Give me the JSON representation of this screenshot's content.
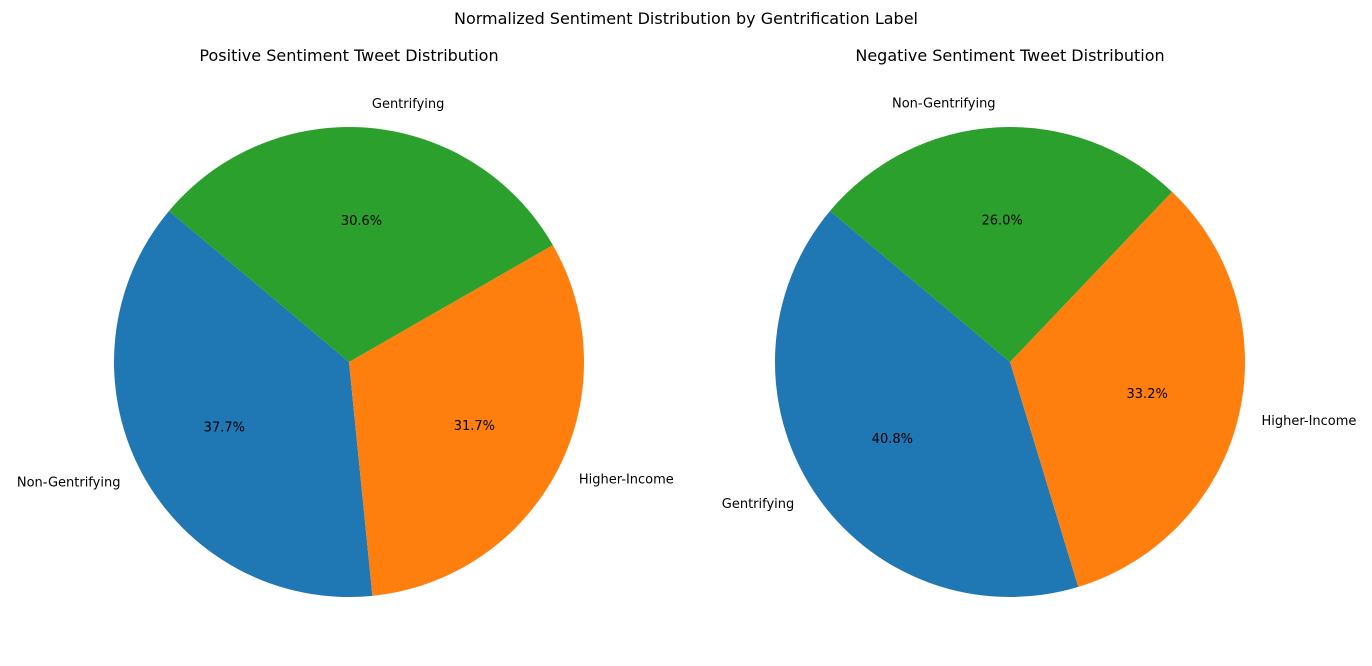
{
  "figure": {
    "suptitle": "Normalized Sentiment Distribution by Gentrification Label"
  },
  "chart_data": [
    {
      "type": "pie",
      "title": "Positive Sentiment Tweet Distribution",
      "slices": [
        {
          "label": "Non-Gentrifying",
          "value": 37.7,
          "pct_label": "37.7%",
          "color": "#1f77b4"
        },
        {
          "label": "Higher-Income",
          "value": 31.7,
          "pct_label": "31.7%",
          "color": "#ff7f0e"
        },
        {
          "label": "Gentrifying",
          "value": 30.6,
          "pct_label": "30.6%",
          "color": "#2ca02c"
        }
      ]
    },
    {
      "type": "pie",
      "title": "Negative Sentiment Tweet Distribution",
      "slices": [
        {
          "label": "Gentrifying",
          "value": 40.8,
          "pct_label": "40.8%",
          "color": "#1f77b4"
        },
        {
          "label": "Higher-Income",
          "value": 33.2,
          "pct_label": "33.2%",
          "color": "#ff7f0e"
        },
        {
          "label": "Non-Gentrifying",
          "value": 26.0,
          "pct_label": "26.0%",
          "color": "#2ca02c"
        }
      ]
    }
  ]
}
